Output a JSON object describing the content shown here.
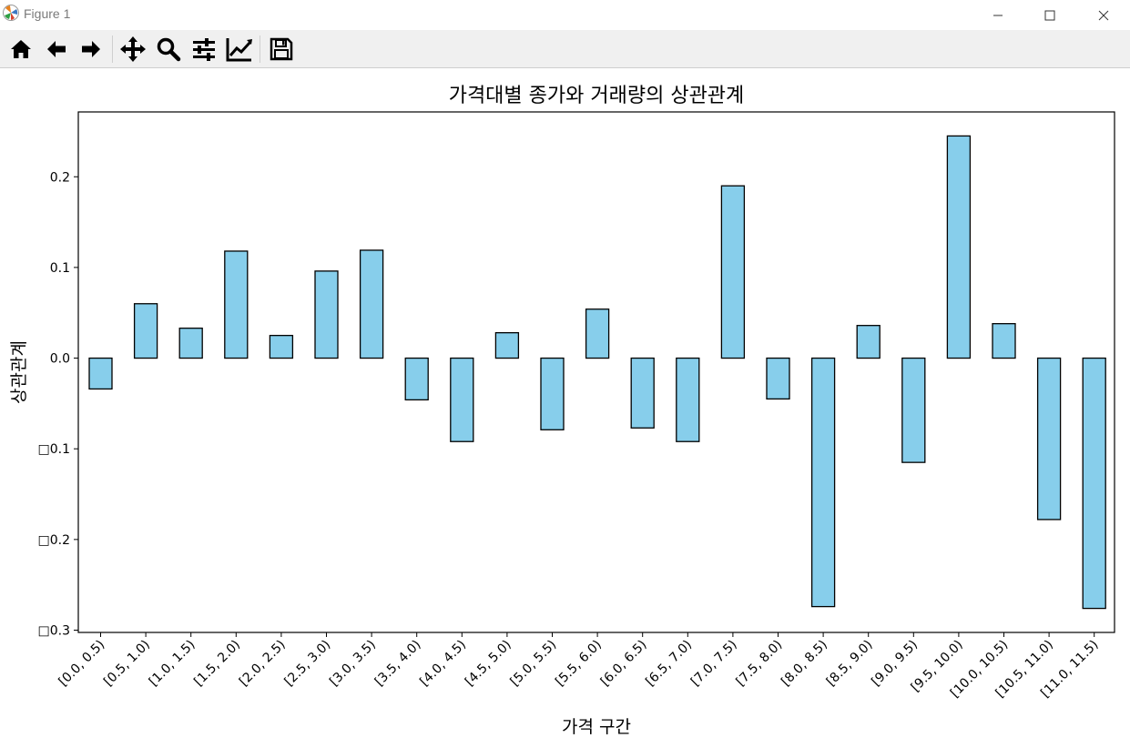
{
  "window": {
    "title": "Figure 1"
  },
  "toolbar": {
    "buttons": [
      "home-icon",
      "back-arrow-icon",
      "forward-arrow-icon",
      "pan-icon",
      "zoom-icon",
      "configure-subplots-icon",
      "edit-axis-icon",
      "save-icon"
    ]
  },
  "colors": {
    "bar_fill": "#87CEEB",
    "bar_edge": "#000000",
    "toolbar_bg": "#f0f0f0"
  },
  "chart_data": {
    "type": "bar",
    "title": "가격대별 종가와 거래량의 상관관계",
    "xlabel": "가격 구간",
    "ylabel": "상관관계",
    "categories": [
      "[0.0, 0.5)",
      "[0.5, 1.0)",
      "[1.0, 1.5)",
      "[1.5, 2.0)",
      "[2.0, 2.5)",
      "[2.5, 3.0)",
      "[3.0, 3.5)",
      "[3.5, 4.0)",
      "[4.0, 4.5)",
      "[4.5, 5.0)",
      "[5.0, 5.5)",
      "[5.5, 6.0)",
      "[6.0, 6.5)",
      "[6.5, 7.0)",
      "[7.0, 7.5)",
      "[7.5, 8.0)",
      "[8.0, 8.5)",
      "[8.5, 9.0)",
      "[9.0, 9.5)",
      "[9.5, 10.0)",
      "[10.0, 10.5)",
      "[10.5, 11.0)",
      "[11.0, 11.5)"
    ],
    "values": [
      -0.034,
      0.06,
      0.033,
      0.118,
      0.025,
      0.096,
      0.119,
      -0.046,
      -0.092,
      0.028,
      -0.079,
      0.054,
      -0.077,
      -0.092,
      0.19,
      -0.045,
      -0.274,
      0.036,
      -0.115,
      0.245,
      0.038,
      -0.178,
      -0.276
    ],
    "yticks": [
      0.2,
      0.1,
      0.0,
      -0.1,
      -0.2,
      -0.3
    ],
    "ytick_labels": [
      "0.2",
      "0.1",
      "0.0",
      "□0.1",
      "□0.2",
      "□0.3"
    ],
    "ylim": [
      -0.3025,
      0.2715
    ],
    "grid": false,
    "legend": "none"
  }
}
